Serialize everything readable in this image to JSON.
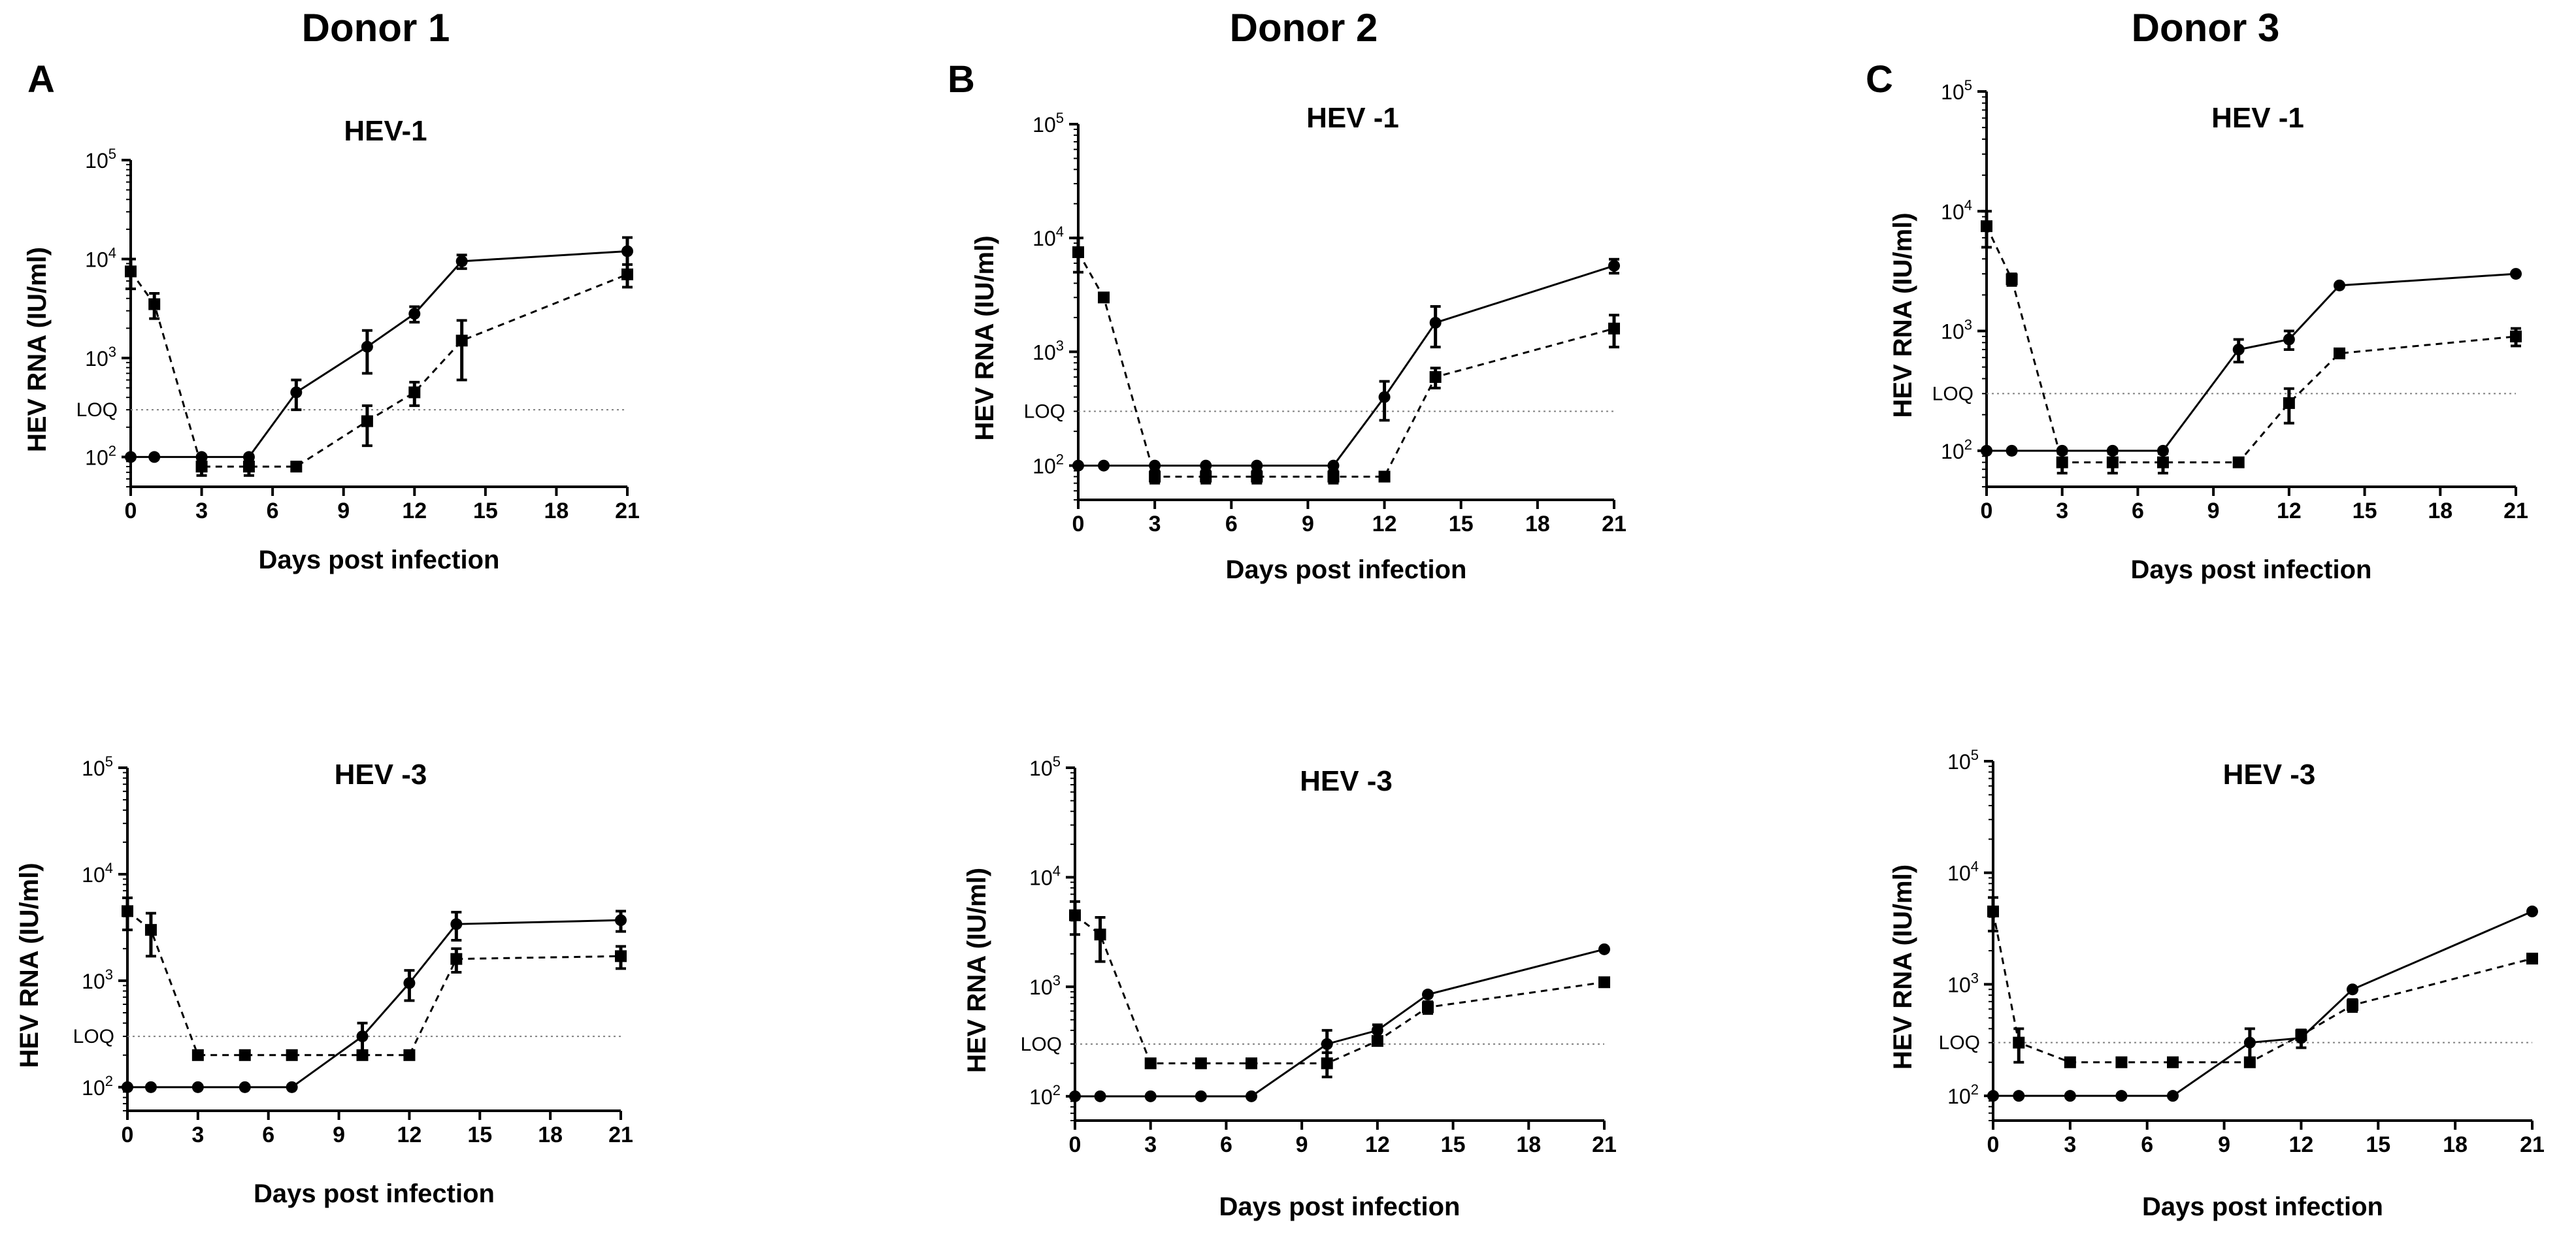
{
  "donors": [
    {
      "title": "Donor 1",
      "letter": "A"
    },
    {
      "title": "Donor 2",
      "letter": "B"
    },
    {
      "title": "Donor 3",
      "letter": "C"
    }
  ],
  "style": {
    "line_color": "#000000",
    "loq_color": "#808080",
    "background": "#ffffff"
  },
  "chart_data": [
    {
      "id": "d1-hev1",
      "type": "line",
      "title": "HEV-1",
      "xlabel": "Days post infection",
      "ylabel": "HEV RNA (IU/ml)",
      "yscale": "log",
      "ylim": [
        50,
        100000
      ],
      "xlim": [
        0,
        21
      ],
      "xticks": [
        0,
        3,
        6,
        9,
        12,
        15,
        18,
        21
      ],
      "yticks": [
        100,
        1000,
        10000,
        100000
      ],
      "ytick_labels": [
        "10^2",
        "10^3",
        "10^4",
        "10^5"
      ],
      "loq": {
        "value": 300,
        "label": "LOQ"
      },
      "series": [
        {
          "name": "circle series",
          "marker": "circle",
          "dash": "solid",
          "x": [
            0,
            1,
            3,
            5,
            7,
            10,
            12,
            14,
            21
          ],
          "y": [
            100,
            100,
            100,
            100,
            450,
            1300,
            2800,
            9500,
            12000
          ],
          "err": [
            0,
            0,
            0,
            0,
            150,
            600,
            500,
            1500,
            4500
          ]
        },
        {
          "name": "square series",
          "marker": "square",
          "dash": "dashed",
          "x": [
            0,
            1,
            3,
            5,
            7,
            10,
            12,
            14,
            21
          ],
          "y": [
            7500,
            3500,
            80,
            80,
            80,
            230,
            450,
            1500,
            7000
          ],
          "err": [
            2500,
            1000,
            15,
            15,
            0,
            100,
            120,
            900,
            1800
          ]
        }
      ]
    },
    {
      "id": "d2-hev1",
      "type": "line",
      "title": "HEV -1",
      "xlabel": "Days post infection",
      "ylabel": "HEV RNA (IU/ml)",
      "yscale": "log",
      "ylim": [
        50,
        100000
      ],
      "xlim": [
        0,
        21
      ],
      "xticks": [
        0,
        3,
        6,
        9,
        12,
        15,
        18,
        21
      ],
      "yticks": [
        100,
        1000,
        10000,
        100000
      ],
      "ytick_labels": [
        "10^2",
        "10^3",
        "10^4",
        "10^5"
      ],
      "loq": {
        "value": 300,
        "label": "LOQ"
      },
      "series": [
        {
          "name": "circle series",
          "marker": "circle",
          "dash": "solid",
          "x": [
            0,
            1,
            3,
            5,
            7,
            10,
            12,
            14,
            21
          ],
          "y": [
            100,
            100,
            100,
            100,
            100,
            100,
            400,
            1800,
            5700
          ],
          "err": [
            0,
            0,
            0,
            0,
            0,
            0,
            150,
            700,
            800
          ]
        },
        {
          "name": "square series",
          "marker": "square",
          "dash": "dashed",
          "x": [
            0,
            1,
            3,
            5,
            7,
            10,
            12,
            14,
            21
          ],
          "y": [
            7500,
            3000,
            80,
            80,
            80,
            80,
            80,
            600,
            1600
          ],
          "err": [
            2500,
            0,
            10,
            10,
            10,
            10,
            0,
            120,
            500
          ]
        }
      ]
    },
    {
      "id": "d3-hev1",
      "type": "line",
      "title": "HEV -1",
      "xlabel": "Days post infection",
      "ylabel": "HEV RNA (IU/ml)",
      "yscale": "log",
      "ylim": [
        50,
        100000
      ],
      "xlim": [
        0,
        21
      ],
      "xticks": [
        0,
        3,
        6,
        9,
        12,
        15,
        18,
        21
      ],
      "yticks": [
        100,
        1000,
        10000,
        100000
      ],
      "ytick_labels": [
        "10^2",
        "10^3",
        "10^4",
        "10^5"
      ],
      "loq": {
        "value": 300,
        "label": "LOQ"
      },
      "series": [
        {
          "name": "circle series",
          "marker": "circle",
          "dash": "solid",
          "x": [
            0,
            1,
            3,
            5,
            7,
            10,
            12,
            14,
            21
          ],
          "y": [
            100,
            100,
            100,
            100,
            100,
            700,
            850,
            2400,
            3000
          ],
          "err": [
            0,
            0,
            0,
            0,
            0,
            150,
            150,
            0,
            0
          ]
        },
        {
          "name": "square series",
          "marker": "square",
          "dash": "dashed",
          "x": [
            0,
            1,
            3,
            5,
            7,
            10,
            12,
            14,
            21
          ],
          "y": [
            7500,
            2700,
            80,
            80,
            80,
            80,
            250,
            650,
            900
          ],
          "err": [
            2500,
            300,
            15,
            15,
            15,
            0,
            80,
            0,
            150
          ]
        }
      ]
    },
    {
      "id": "d1-hev3",
      "type": "line",
      "title": "HEV -3",
      "xlabel": "Days post infection",
      "ylabel": "HEV RNA (IU/ml)",
      "yscale": "log",
      "ylim": [
        60,
        100000
      ],
      "xlim": [
        0,
        21
      ],
      "xticks": [
        0,
        3,
        6,
        9,
        12,
        15,
        18,
        21
      ],
      "yticks": [
        100,
        1000,
        10000,
        100000
      ],
      "ytick_labels": [
        "10^2",
        "10^3",
        "10^4",
        "10^5"
      ],
      "loq": {
        "value": 300,
        "label": "LOQ"
      },
      "series": [
        {
          "name": "circle series",
          "marker": "circle",
          "dash": "solid",
          "x": [
            0,
            1,
            3,
            5,
            7,
            10,
            12,
            14,
            21
          ],
          "y": [
            100,
            100,
            100,
            100,
            100,
            300,
            950,
            3400,
            3700
          ],
          "err": [
            0,
            0,
            0,
            0,
            0,
            100,
            300,
            1000,
            800
          ]
        },
        {
          "name": "square series",
          "marker": "square",
          "dash": "dashed",
          "x": [
            0,
            1,
            3,
            5,
            7,
            10,
            12,
            14,
            21
          ],
          "y": [
            4500,
            3000,
            200,
            200,
            200,
            200,
            200,
            1600,
            1700
          ],
          "err": [
            1500,
            1300,
            0,
            0,
            0,
            0,
            0,
            400,
            400
          ]
        }
      ]
    },
    {
      "id": "d2-hev3",
      "type": "line",
      "title": "HEV -3",
      "xlabel": "Days post infection",
      "ylabel": "HEV RNA (IU/ml)",
      "yscale": "log",
      "ylim": [
        60,
        100000
      ],
      "xlim": [
        0,
        21
      ],
      "xticks": [
        0,
        3,
        6,
        9,
        12,
        15,
        18,
        21
      ],
      "yticks": [
        100,
        1000,
        10000,
        100000
      ],
      "ytick_labels": [
        "10^2",
        "10^3",
        "10^4",
        "10^5"
      ],
      "loq": {
        "value": 300,
        "label": "LOQ"
      },
      "series": [
        {
          "name": "circle series",
          "marker": "circle",
          "dash": "solid",
          "x": [
            0,
            1,
            3,
            5,
            7,
            10,
            12,
            14,
            21
          ],
          "y": [
            100,
            100,
            100,
            100,
            100,
            300,
            400,
            850,
            2200
          ],
          "err": [
            0,
            0,
            0,
            0,
            0,
            100,
            50,
            0,
            0
          ]
        },
        {
          "name": "square series",
          "marker": "square",
          "dash": "dashed",
          "x": [
            0,
            1,
            3,
            5,
            7,
            10,
            12,
            14,
            21
          ],
          "y": [
            4500,
            3000,
            200,
            200,
            200,
            200,
            320,
            650,
            1100
          ],
          "err": [
            1500,
            1300,
            0,
            0,
            0,
            50,
            0,
            80,
            0
          ]
        }
      ]
    },
    {
      "id": "d3-hev3",
      "type": "line",
      "title": "HEV -3",
      "xlabel": "Days post infection",
      "ylabel": "HEV RNA (IU/ml)",
      "yscale": "log",
      "ylim": [
        60,
        100000
      ],
      "xlim": [
        0,
        21
      ],
      "xticks": [
        0,
        3,
        6,
        9,
        12,
        15,
        18,
        21
      ],
      "yticks": [
        100,
        1000,
        10000,
        100000
      ],
      "ytick_labels": [
        "10^2",
        "10^3",
        "10^4",
        "10^5"
      ],
      "loq": {
        "value": 300,
        "label": "LOQ"
      },
      "series": [
        {
          "name": "circle series",
          "marker": "circle",
          "dash": "solid",
          "x": [
            0,
            1,
            3,
            5,
            7,
            10,
            12,
            14,
            21
          ],
          "y": [
            100,
            100,
            100,
            100,
            100,
            300,
            330,
            900,
            4500
          ],
          "err": [
            0,
            0,
            0,
            0,
            0,
            100,
            60,
            0,
            0
          ]
        },
        {
          "name": "square series",
          "marker": "square",
          "dash": "dashed",
          "x": [
            0,
            1,
            3,
            5,
            7,
            10,
            12,
            14,
            21
          ],
          "y": [
            4500,
            300,
            200,
            200,
            200,
            200,
            350,
            650,
            1700
          ],
          "err": [
            1500,
            100,
            0,
            0,
            0,
            0,
            0,
            80,
            0
          ]
        }
      ]
    }
  ]
}
